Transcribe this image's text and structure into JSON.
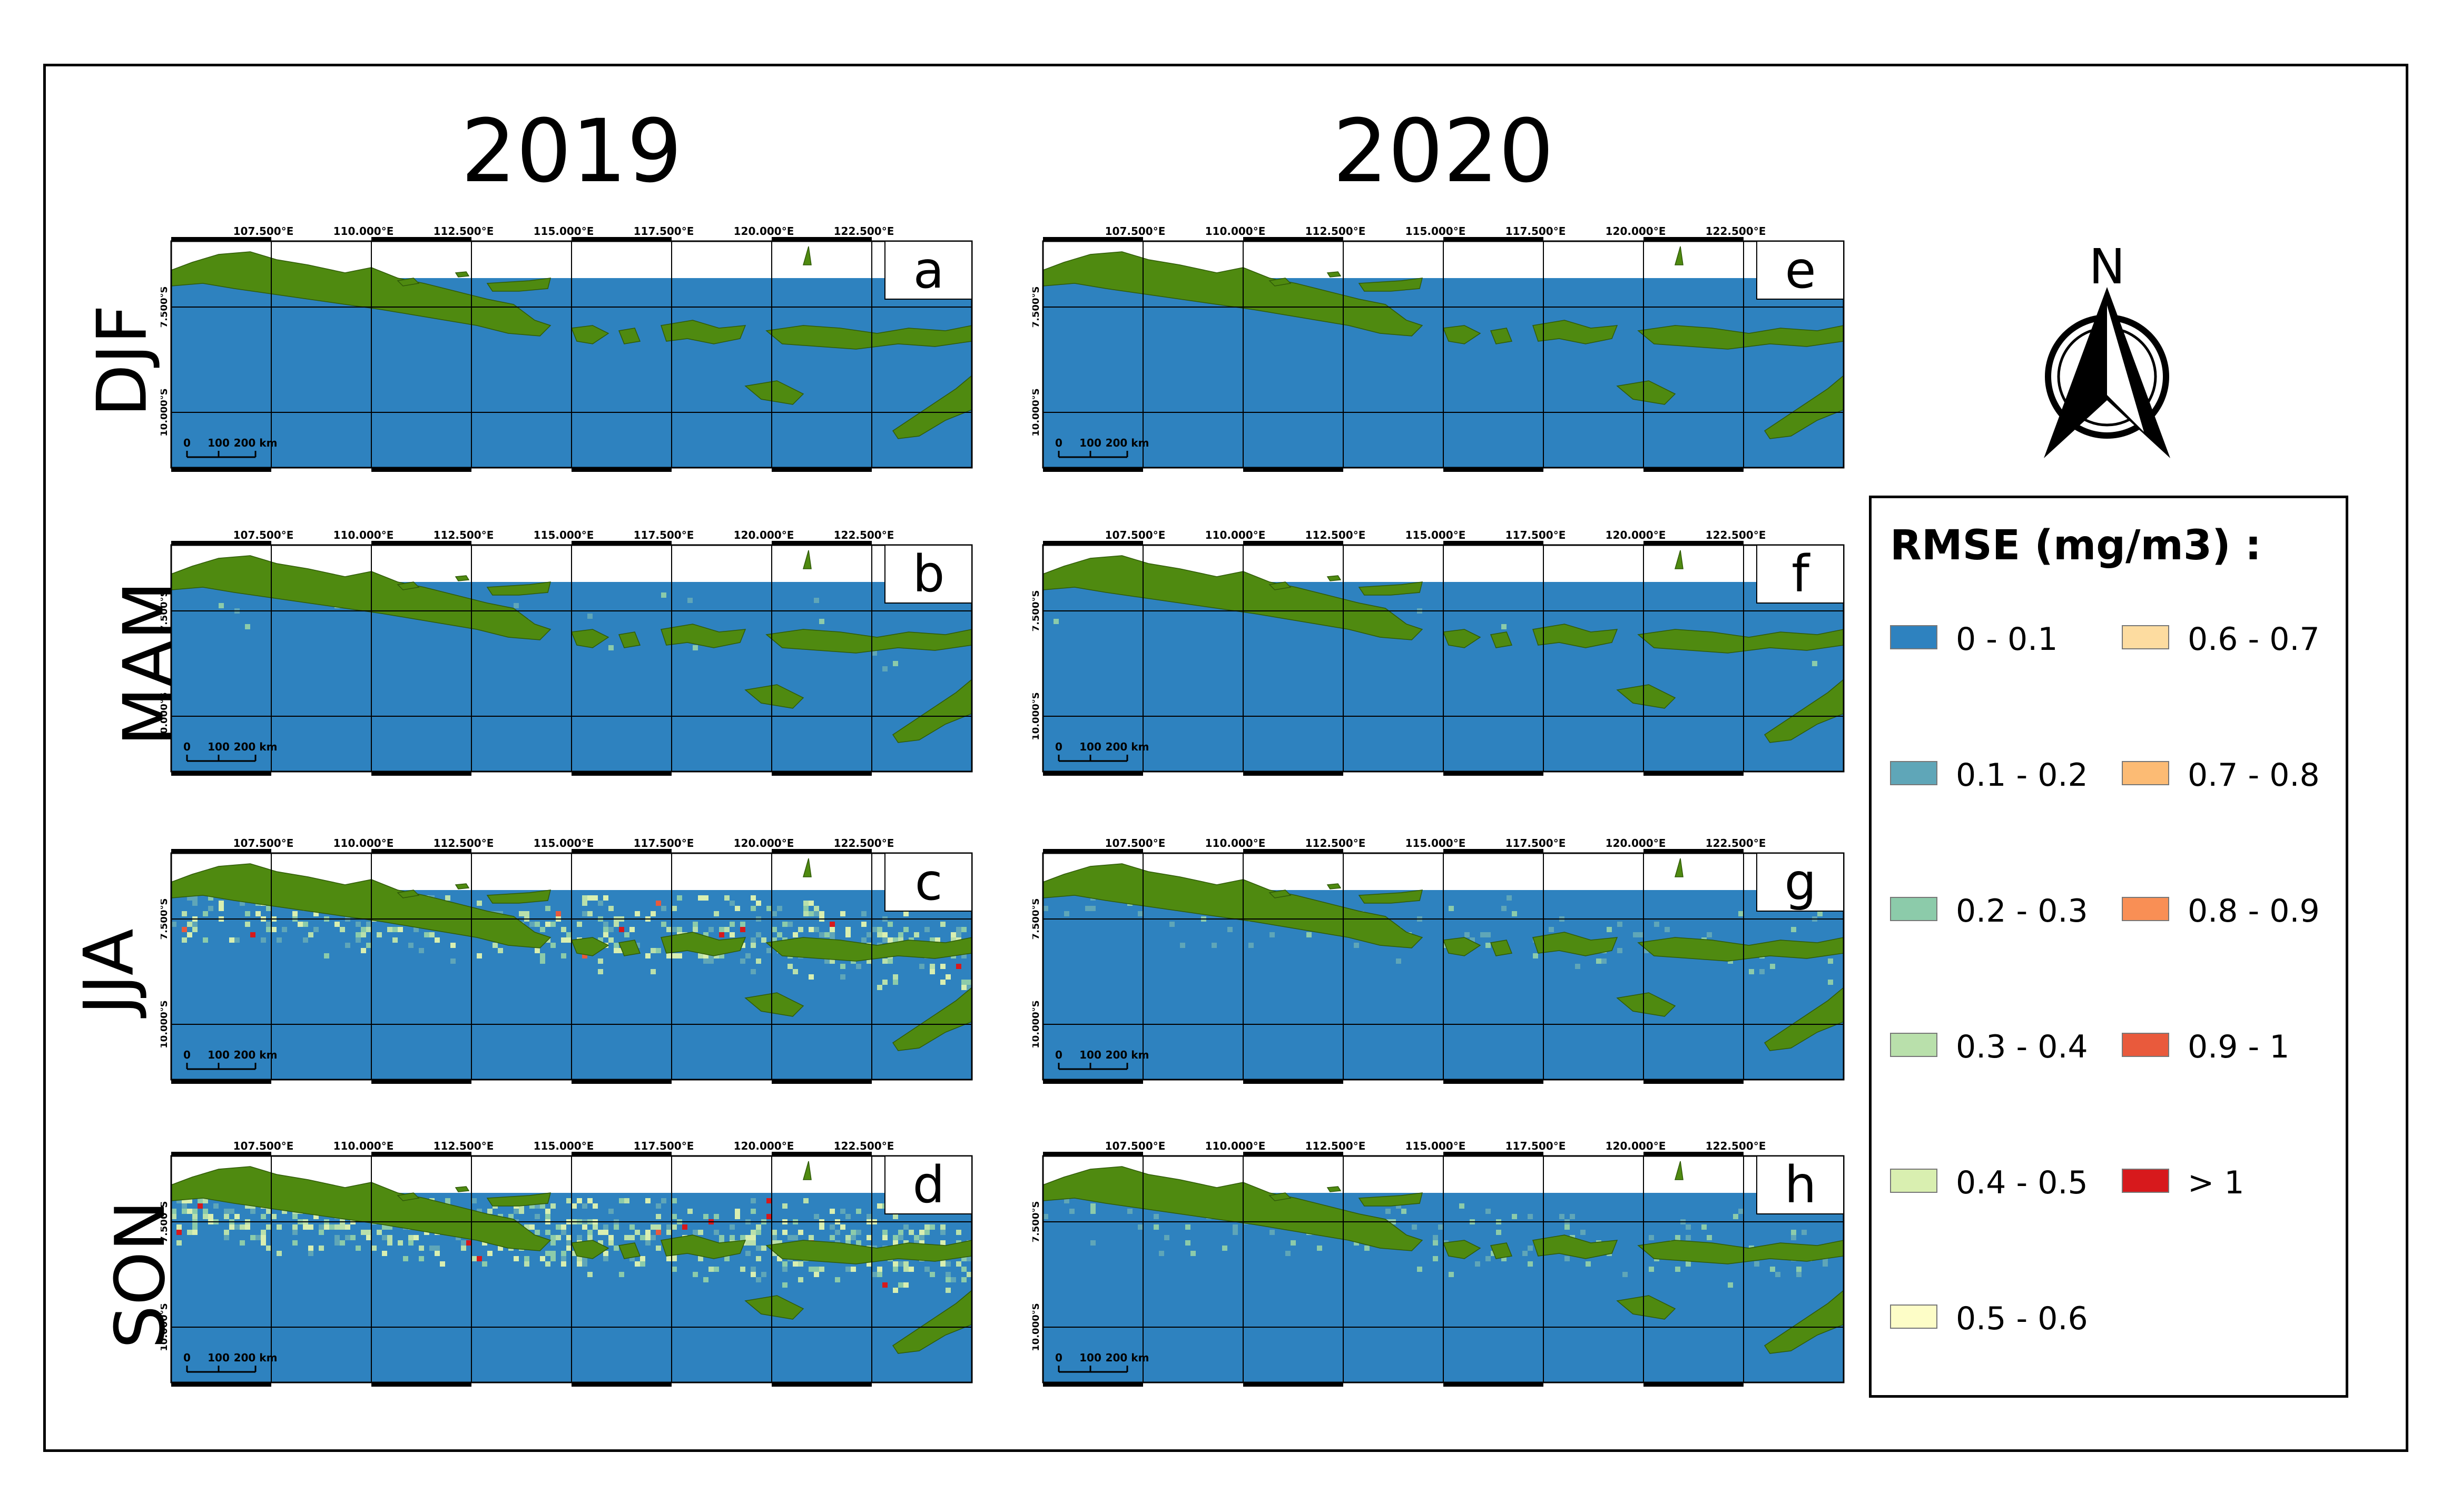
{
  "years": [
    "2019",
    "2020"
  ],
  "seasons": [
    "DJF",
    "MAM",
    "JJA",
    "SON"
  ],
  "longitude_labels": [
    "107.500°E",
    "110.000°E",
    "112.500°E",
    "115.000°E",
    "117.500°E",
    "120.000°E",
    "122.500°E"
  ],
  "latitude_labels": [
    "7.500°S",
    "10.000°S"
  ],
  "scalebar_labels": [
    "0",
    "100",
    "200 km"
  ],
  "panels": [
    {
      "letter": "a",
      "year": "2019",
      "season": "DJF"
    },
    {
      "letter": "b",
      "year": "2019",
      "season": "MAM"
    },
    {
      "letter": "c",
      "year": "2019",
      "season": "JJA"
    },
    {
      "letter": "d",
      "year": "2019",
      "season": "SON"
    },
    {
      "letter": "e",
      "year": "2020",
      "season": "DJF"
    },
    {
      "letter": "f",
      "year": "2020",
      "season": "MAM"
    },
    {
      "letter": "g",
      "year": "2020",
      "season": "JJA"
    },
    {
      "letter": "h",
      "year": "2020",
      "season": "SON"
    }
  ],
  "north_label": "N",
  "legend": {
    "title": "RMSE (mg/m3) :",
    "items": [
      {
        "label": "0 - 0.1",
        "color": "#2e82bf"
      },
      {
        "label": "0.1 - 0.2",
        "color": "#5fa6b8"
      },
      {
        "label": "0.2 - 0.3",
        "color": "#8ccbaa"
      },
      {
        "label": "0.3 - 0.4",
        "color": "#b9e0ab"
      },
      {
        "label": "0.4 - 0.5",
        "color": "#d9efb0"
      },
      {
        "label": "0.5 - 0.6",
        "color": "#fdfdc7"
      },
      {
        "label": "0.6 - 0.7",
        "color": "#fddca0"
      },
      {
        "label": "0.7 - 0.8",
        "color": "#fcbb74"
      },
      {
        "label": "0.8 - 0.9",
        "color": "#f98f55"
      },
      {
        "label": "0.9 - 1",
        "color": "#e95a3c"
      },
      {
        "label": "> 1",
        "color": "#d7191c"
      }
    ]
  },
  "colors": {
    "land": "#4f8a10",
    "sea": "#2e82bf",
    "frame": "#000000"
  }
}
